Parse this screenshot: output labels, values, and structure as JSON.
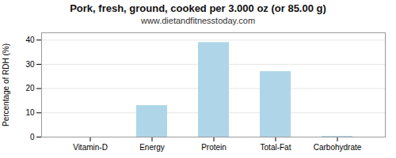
{
  "chart_data": {
    "type": "bar",
    "title": "Pork, fresh, ground, cooked per 3.000 oz (or 85.00 g)",
    "subtitle": "www.dietandfitnesstoday.com",
    "categories": [
      "Vitamin-D",
      "Energy",
      "Protein",
      "Total-Fat",
      "Carbohydrate"
    ],
    "values": [
      0,
      13,
      39,
      27,
      0.3
    ],
    "color": "#aed6e8",
    "ylabel": "Percentage of RDH (%)",
    "ylim": [
      0,
      43
    ],
    "yticks": [
      0,
      10,
      20,
      30,
      40
    ],
    "grid": true
  }
}
